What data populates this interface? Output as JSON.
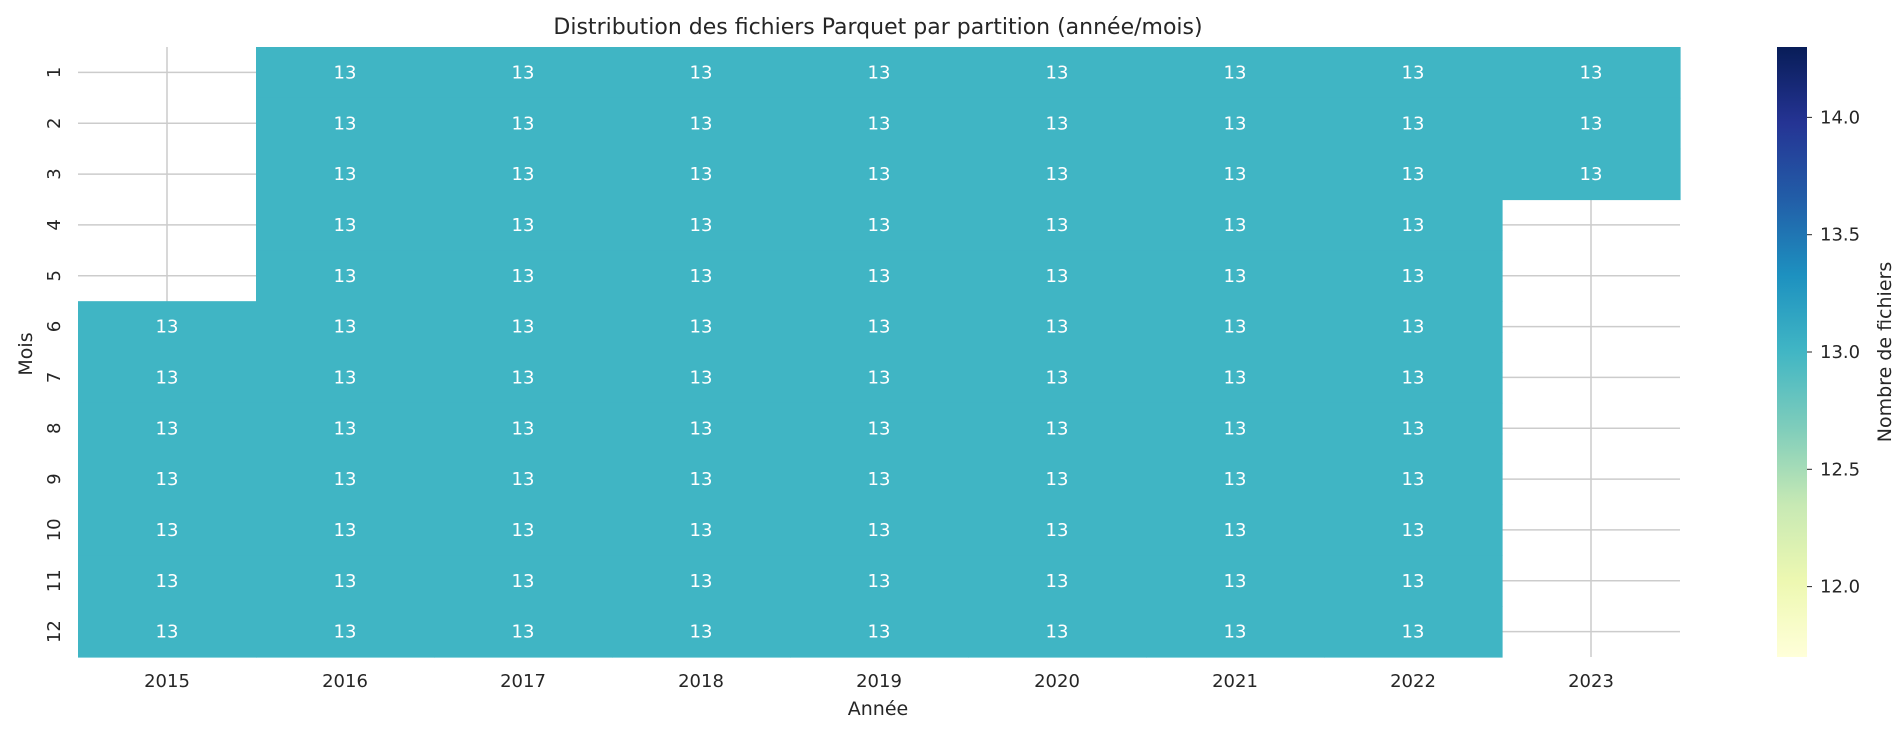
{
  "chart_data": {
    "type": "heatmap",
    "title": "Distribution des fichiers Parquet par partition (année/mois)",
    "xlabel": "Année",
    "ylabel": "Mois",
    "x_categories": [
      "2015",
      "2016",
      "2017",
      "2018",
      "2019",
      "2020",
      "2021",
      "2022",
      "2023"
    ],
    "y_categories": [
      "1",
      "2",
      "3",
      "4",
      "5",
      "6",
      "7",
      "8",
      "9",
      "10",
      "11",
      "12"
    ],
    "values": [
      [
        null,
        13,
        13,
        13,
        13,
        13,
        13,
        13,
        13
      ],
      [
        null,
        13,
        13,
        13,
        13,
        13,
        13,
        13,
        13
      ],
      [
        null,
        13,
        13,
        13,
        13,
        13,
        13,
        13,
        13
      ],
      [
        null,
        13,
        13,
        13,
        13,
        13,
        13,
        13,
        null
      ],
      [
        null,
        13,
        13,
        13,
        13,
        13,
        13,
        13,
        null
      ],
      [
        13,
        13,
        13,
        13,
        13,
        13,
        13,
        13,
        null
      ],
      [
        13,
        13,
        13,
        13,
        13,
        13,
        13,
        13,
        null
      ],
      [
        13,
        13,
        13,
        13,
        13,
        13,
        13,
        13,
        null
      ],
      [
        13,
        13,
        13,
        13,
        13,
        13,
        13,
        13,
        null
      ],
      [
        13,
        13,
        13,
        13,
        13,
        13,
        13,
        13,
        null
      ],
      [
        13,
        13,
        13,
        13,
        13,
        13,
        13,
        13,
        null
      ],
      [
        13,
        13,
        13,
        13,
        13,
        13,
        13,
        13,
        null
      ]
    ],
    "colormap": "YlGnBu",
    "cell_color": "#40b5c4",
    "annotation_color": "#ffffff",
    "colorbar": {
      "label": "Nombre de fichiers",
      "range": [
        11.7,
        14.3
      ],
      "ticks": [
        "12.0",
        "12.5",
        "13.0",
        "13.5",
        "14.0"
      ],
      "colors": [
        "#ffffd9",
        "#edf8b1",
        "#c7e9b4",
        "#7fcdbb",
        "#41b6c4",
        "#1d91c0",
        "#225ea8",
        "#253494",
        "#081d58"
      ]
    },
    "grid": true
  }
}
